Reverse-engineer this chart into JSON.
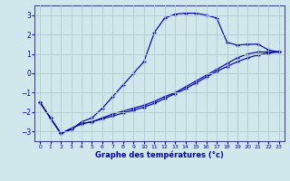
{
  "title": "",
  "xlabel": "Graphe des températures (°c)",
  "xlim": [
    -0.5,
    23.5
  ],
  "ylim": [
    -3.5,
    3.5
  ],
  "yticks": [
    -3,
    -2,
    -1,
    0,
    1,
    2,
    3
  ],
  "xticks": [
    0,
    1,
    2,
    3,
    4,
    5,
    6,
    7,
    8,
    9,
    10,
    11,
    12,
    13,
    14,
    15,
    16,
    17,
    18,
    19,
    20,
    21,
    22,
    23
  ],
  "bg_color": "#d0e8ec",
  "grid_color": "#b0cccc",
  "line_color": "#0000bb",
  "curve1_x": [
    0,
    1,
    2,
    3,
    4,
    5,
    6,
    7,
    8,
    9,
    10,
    11,
    12,
    13,
    14,
    15,
    16,
    17,
    18,
    19,
    20,
    21,
    22,
    23
  ],
  "curve1_y": [
    -1.5,
    -2.3,
    -3.1,
    -2.9,
    -2.5,
    -2.3,
    -1.8,
    -1.2,
    -0.6,
    0.0,
    0.6,
    2.1,
    2.85,
    3.05,
    3.1,
    3.1,
    3.0,
    2.85,
    1.6,
    1.45,
    1.5,
    1.5,
    1.2,
    1.1
  ],
  "curve2_x": [
    0,
    1,
    2,
    3,
    4,
    5,
    6,
    7,
    8,
    9,
    10,
    11,
    12,
    13,
    14,
    15,
    16,
    17,
    18,
    19,
    20,
    21,
    22,
    23
  ],
  "curve2_y": [
    -1.5,
    -2.3,
    -3.1,
    -2.85,
    -2.6,
    -2.5,
    -2.3,
    -2.1,
    -1.95,
    -1.8,
    -1.65,
    -1.45,
    -1.2,
    -1.0,
    -0.7,
    -0.4,
    -0.1,
    0.2,
    0.5,
    0.8,
    1.0,
    1.1,
    1.1,
    1.1
  ],
  "curve3_x": [
    0,
    1,
    2,
    3,
    4,
    5,
    6,
    7,
    8,
    9,
    10,
    11,
    12,
    13,
    14,
    15,
    16,
    17,
    18,
    19,
    20,
    21,
    22,
    23
  ],
  "curve3_y": [
    -1.5,
    -2.3,
    -3.1,
    -2.85,
    -2.6,
    -2.5,
    -2.35,
    -2.2,
    -2.05,
    -1.9,
    -1.75,
    -1.55,
    -1.3,
    -1.05,
    -0.8,
    -0.5,
    -0.2,
    0.1,
    0.35,
    0.6,
    0.8,
    0.95,
    1.05,
    1.1
  ]
}
